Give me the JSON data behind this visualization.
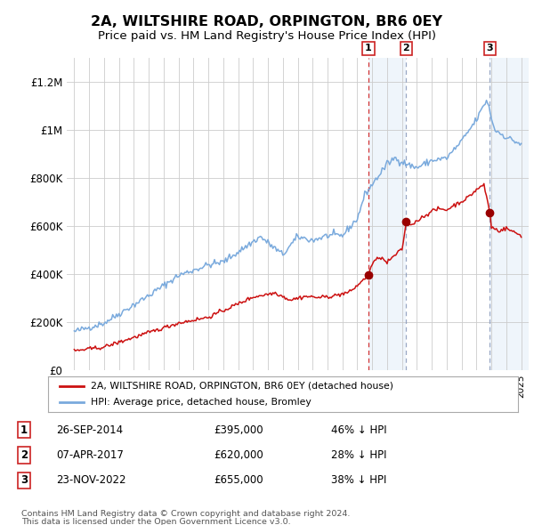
{
  "title": "2A, WILTSHIRE ROAD, ORPINGTON, BR6 0EY",
  "subtitle": "Price paid vs. HM Land Registry's House Price Index (HPI)",
  "title_fontsize": 11.5,
  "subtitle_fontsize": 9.5,
  "background_color": "#ffffff",
  "grid_color": "#cccccc",
  "hpi_color": "#7aaadd",
  "price_color": "#cc1111",
  "marker_color": "#990000",
  "sale_dates": [
    2014.74,
    2017.27,
    2022.9
  ],
  "sale_prices": [
    395000,
    620000,
    655000
  ],
  "sale_labels": [
    "1",
    "2",
    "3"
  ],
  "sale_info": [
    {
      "label": "1",
      "date": "26-SEP-2014",
      "price": "£395,000",
      "note": "46% ↓ HPI"
    },
    {
      "label": "2",
      "date": "07-APR-2017",
      "price": "£620,000",
      "note": "28% ↓ HPI"
    },
    {
      "label": "3",
      "date": "23-NOV-2022",
      "price": "£655,000",
      "note": "38% ↓ HPI"
    }
  ],
  "legend_line1": "2A, WILTSHIRE ROAD, ORPINGTON, BR6 0EY (detached house)",
  "legend_line2": "HPI: Average price, detached house, Bromley",
  "footer_line1": "Contains HM Land Registry data © Crown copyright and database right 2024.",
  "footer_line2": "This data is licensed under the Open Government Licence v3.0.",
  "ylim": [
    0,
    1300000
  ],
  "yticks": [
    0,
    200000,
    400000,
    600000,
    800000,
    1000000,
    1200000
  ],
  "ytick_labels": [
    "£0",
    "£200K",
    "£400K",
    "£600K",
    "£800K",
    "£1M",
    "£1.2M"
  ],
  "xmin": 1994.5,
  "xmax": 2025.5
}
